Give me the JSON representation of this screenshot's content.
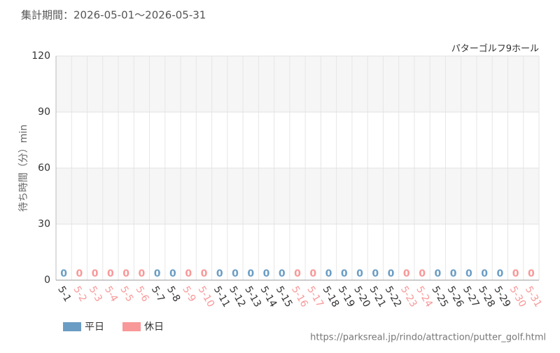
{
  "chart_data": {
    "type": "bar",
    "title": "集計期間：2026-05-01～2026-05-31",
    "subtitle": "パターゴルフ9ホール",
    "y_label": "待ち時間（分）min",
    "source": "https://parksreal.jp/rindo/attraction/putter_golf.html",
    "categories": [
      "5-1",
      "5-2",
      "5-3",
      "5-4",
      "5-5",
      "5-6",
      "5-7",
      "5-8",
      "5-9",
      "5-10",
      "5-11",
      "5-12",
      "5-13",
      "5-14",
      "5-15",
      "5-16",
      "5-17",
      "5-18",
      "5-19",
      "5-20",
      "5-21",
      "5-22",
      "5-23",
      "5-24",
      "5-25",
      "5-26",
      "5-27",
      "5-28",
      "5-29",
      "5-30",
      "5-31"
    ],
    "series": [
      {
        "name": "平日",
        "color": "#6b9dc4",
        "values": [
          0,
          null,
          null,
          null,
          null,
          null,
          0,
          0,
          null,
          null,
          0,
          0,
          0,
          0,
          0,
          null,
          null,
          0,
          0,
          0,
          0,
          0,
          null,
          null,
          0,
          0,
          0,
          0,
          0,
          null,
          null
        ]
      },
      {
        "name": "休日",
        "color": "#f89898",
        "values": [
          null,
          0,
          0,
          0,
          0,
          0,
          null,
          null,
          0,
          0,
          null,
          null,
          null,
          null,
          null,
          0,
          0,
          null,
          null,
          null,
          null,
          null,
          0,
          0,
          null,
          null,
          null,
          null,
          null,
          0,
          0
        ]
      }
    ],
    "ylim": [
      0,
      120
    ],
    "yticks": [
      0,
      30,
      60,
      90,
      120
    ],
    "grid": true
  }
}
